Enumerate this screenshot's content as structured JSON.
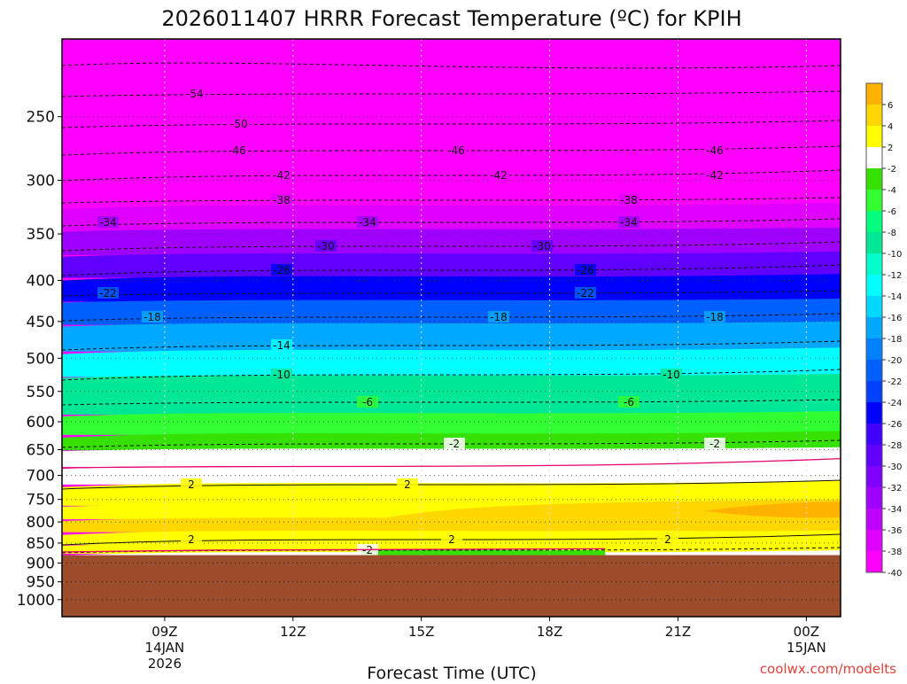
{
  "title": "2026011407 HRRR Forecast Temperature (ºC) for KPIH",
  "credit": "coolwx.com/modelts",
  "chart_data": {
    "type": "heatmap",
    "title": "2026011407 HRRR Forecast Temperature (ºC) for KPIH",
    "xlabel": "Forecast Time (UTC)",
    "ylabel": "",
    "x_hours_range": [
      6.6,
      24.8
    ],
    "y_pressure_range": [
      200,
      1050
    ],
    "y_scale": "log-pressure",
    "ground_pressure": 880,
    "y_ticks": [
      250,
      300,
      350,
      400,
      450,
      500,
      550,
      600,
      650,
      700,
      750,
      800,
      850,
      900,
      950,
      1000
    ],
    "x_ticks": [
      {
        "hour": 9,
        "lines": [
          "09Z",
          "14JAN",
          "2026"
        ]
      },
      {
        "hour": 12,
        "lines": [
          "12Z"
        ]
      },
      {
        "hour": 15,
        "lines": [
          "15Z"
        ]
      },
      {
        "hour": 18,
        "lines": [
          "18Z"
        ]
      },
      {
        "hour": 21,
        "lines": [
          "21Z"
        ]
      },
      {
        "hour": 24,
        "lines": [
          "00Z",
          "15JAN"
        ]
      }
    ],
    "temperature_profile": [
      {
        "p": 220,
        "t": -58
      },
      {
        "p": 240,
        "t": -55
      },
      {
        "p": 262,
        "t": -50
      },
      {
        "p": 280,
        "t": -46
      },
      {
        "p": 300,
        "t": -42
      },
      {
        "p": 322,
        "t": -38
      },
      {
        "p": 345,
        "t": -34
      },
      {
        "p": 370,
        "t": -30
      },
      {
        "p": 395,
        "t": -26
      },
      {
        "p": 423,
        "t": -22
      },
      {
        "p": 452,
        "t": -18
      },
      {
        "p": 488,
        "t": -14
      },
      {
        "p": 525,
        "t": -10
      },
      {
        "p": 585,
        "t": -6
      },
      {
        "p": 620,
        "t": -4
      },
      {
        "p": 648,
        "t": -2
      },
      {
        "p": 680,
        "t": 0
      },
      {
        "p": 715,
        "t": 2
      },
      {
        "p": 760,
        "t": 3
      },
      {
        "p": 790,
        "t": 4
      },
      {
        "p": 820,
        "t": 3
      },
      {
        "p": 850,
        "t": 2
      },
      {
        "p": 872,
        "t": -1
      }
    ],
    "contours": [
      {
        "value": -54,
        "label": "-54",
        "y_label": 106,
        "label_x": [
          220
        ]
      },
      {
        "value": -50,
        "label": "-50",
        "y_label": 140,
        "label_x": [
          270
        ]
      },
      {
        "value": -46,
        "label": "-46",
        "y_label": 170,
        "label_x": [
          268,
          515,
          807
        ]
      },
      {
        "value": -42,
        "label": "-42",
        "y_label": 198,
        "label_x": [
          318,
          563,
          807
        ]
      },
      {
        "value": -38,
        "label": "-38",
        "y_label": 226,
        "label_x": [
          318,
          710
        ]
      },
      {
        "value": -34,
        "label": "-34",
        "y_label": 251,
        "label_x": [
          122,
          415,
          710
        ]
      },
      {
        "value": -30,
        "label": "-30",
        "y_label": 278,
        "label_x": [
          368,
          612
        ]
      },
      {
        "value": -26,
        "label": "-26",
        "y_label": 305,
        "label_x": [
          318,
          661
        ]
      },
      {
        "value": -22,
        "label": "-22",
        "y_label": 331,
        "label_x": [
          122,
          661
        ]
      },
      {
        "value": -18,
        "label": "-18",
        "y_label": 358,
        "label_x": [
          172,
          563,
          807
        ]
      },
      {
        "value": -14,
        "label": "-14",
        "y_label": 390,
        "label_x": [
          318
        ]
      },
      {
        "value": -10,
        "label": "-10",
        "y_label": 423,
        "label_x": [
          318,
          758
        ]
      },
      {
        "value": -6,
        "label": "-6",
        "y_label": 454,
        "label_x": [
          415,
          710
        ]
      },
      {
        "value": -2,
        "label": "-2",
        "y_label": 501,
        "label_x": [
          513,
          807
        ]
      },
      {
        "value": 2,
        "label": "2",
        "y_label": 547,
        "label_x": [
          216,
          460
        ]
      },
      {
        "value": 2,
        "label": "2",
        "y_label": 609,
        "label_x": [
          216,
          510,
          754
        ]
      },
      {
        "value": -2,
        "label": "-2",
        "y_label": 621,
        "label_x": [
          415
        ]
      }
    ],
    "colorbar": {
      "labels": [
        "6",
        "4",
        "2",
        "-2",
        "-4",
        "-6",
        "-8",
        "-10",
        "-12",
        "-14",
        "-16",
        "-18",
        "-20",
        "-22",
        "-24",
        "-26",
        "-28",
        "-30",
        "-32",
        "-34",
        "-36",
        "-38",
        "-40"
      ],
      "colors": [
        "#ffb300",
        "#ffd700",
        "#ffff00",
        "#ffffff",
        "#36e000",
        "#32ff32",
        "#00ff7f",
        "#00e896",
        "#00ffcc",
        "#00ffff",
        "#00d8ff",
        "#00a8ff",
        "#0080ff",
        "#0060ff",
        "#0040ff",
        "#0000ff",
        "#4000ff",
        "#6000ff",
        "#8000ff",
        "#a000ff",
        "#c000ff",
        "#e000ff",
        "#ff00ff"
      ]
    },
    "ground_color": "#9c4e2c",
    "freezing_line_color": "#e8006e"
  }
}
